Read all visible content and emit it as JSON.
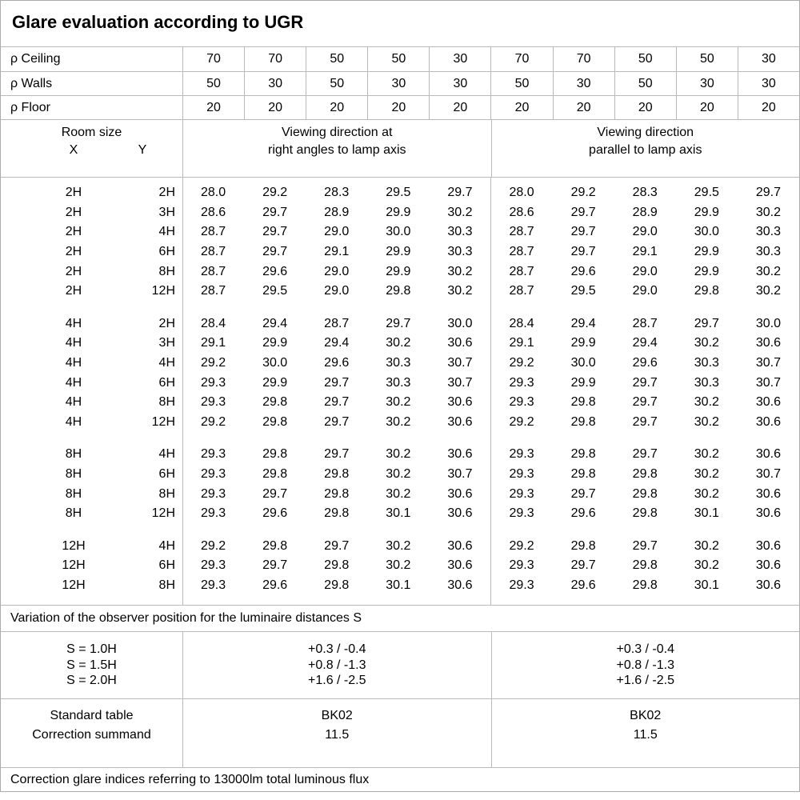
{
  "title": "Glare evaluation according to UGR",
  "reflectance_rows": [
    {
      "label": "ρ Ceiling",
      "values": [
        "70",
        "70",
        "50",
        "50",
        "30",
        "70",
        "70",
        "50",
        "50",
        "30"
      ]
    },
    {
      "label": "ρ Walls",
      "values": [
        "50",
        "30",
        "50",
        "30",
        "30",
        "50",
        "30",
        "50",
        "30",
        "30"
      ]
    },
    {
      "label": "ρ Floor",
      "values": [
        "20",
        "20",
        "20",
        "20",
        "20",
        "20",
        "20",
        "20",
        "20",
        "20"
      ]
    }
  ],
  "header": {
    "room_size_label": "Room size",
    "x_label": "X",
    "y_label": "Y",
    "viewing_right_angles_line1": "Viewing direction at",
    "viewing_right_angles_line2": "right angles to lamp axis",
    "viewing_parallel_line1": "Viewing direction",
    "viewing_parallel_line2": "parallel to lamp axis"
  },
  "ugr_table": {
    "columns_per_half": 5,
    "blocks": [
      {
        "rows": [
          {
            "x": "2H",
            "y": "2H",
            "values": [
              "28.0",
              "29.2",
              "28.3",
              "29.5",
              "29.7",
              "28.0",
              "29.2",
              "28.3",
              "29.5",
              "29.7"
            ]
          },
          {
            "x": "2H",
            "y": "3H",
            "values": [
              "28.6",
              "29.7",
              "28.9",
              "29.9",
              "30.2",
              "28.6",
              "29.7",
              "28.9",
              "29.9",
              "30.2"
            ]
          },
          {
            "x": "2H",
            "y": "4H",
            "values": [
              "28.7",
              "29.7",
              "29.0",
              "30.0",
              "30.3",
              "28.7",
              "29.7",
              "29.0",
              "30.0",
              "30.3"
            ]
          },
          {
            "x": "2H",
            "y": "6H",
            "values": [
              "28.7",
              "29.7",
              "29.1",
              "29.9",
              "30.3",
              "28.7",
              "29.7",
              "29.1",
              "29.9",
              "30.3"
            ]
          },
          {
            "x": "2H",
            "y": "8H",
            "values": [
              "28.7",
              "29.6",
              "29.0",
              "29.9",
              "30.2",
              "28.7",
              "29.6",
              "29.0",
              "29.9",
              "30.2"
            ]
          },
          {
            "x": "2H",
            "y": "12H",
            "values": [
              "28.7",
              "29.5",
              "29.0",
              "29.8",
              "30.2",
              "28.7",
              "29.5",
              "29.0",
              "29.8",
              "30.2"
            ]
          }
        ]
      },
      {
        "rows": [
          {
            "x": "4H",
            "y": "2H",
            "values": [
              "28.4",
              "29.4",
              "28.7",
              "29.7",
              "30.0",
              "28.4",
              "29.4",
              "28.7",
              "29.7",
              "30.0"
            ]
          },
          {
            "x": "4H",
            "y": "3H",
            "values": [
              "29.1",
              "29.9",
              "29.4",
              "30.2",
              "30.6",
              "29.1",
              "29.9",
              "29.4",
              "30.2",
              "30.6"
            ]
          },
          {
            "x": "4H",
            "y": "4H",
            "values": [
              "29.2",
              "30.0",
              "29.6",
              "30.3",
              "30.7",
              "29.2",
              "30.0",
              "29.6",
              "30.3",
              "30.7"
            ]
          },
          {
            "x": "4H",
            "y": "6H",
            "values": [
              "29.3",
              "29.9",
              "29.7",
              "30.3",
              "30.7",
              "29.3",
              "29.9",
              "29.7",
              "30.3",
              "30.7"
            ]
          },
          {
            "x": "4H",
            "y": "8H",
            "values": [
              "29.3",
              "29.8",
              "29.7",
              "30.2",
              "30.6",
              "29.3",
              "29.8",
              "29.7",
              "30.2",
              "30.6"
            ]
          },
          {
            "x": "4H",
            "y": "12H",
            "values": [
              "29.2",
              "29.8",
              "29.7",
              "30.2",
              "30.6",
              "29.2",
              "29.8",
              "29.7",
              "30.2",
              "30.6"
            ]
          }
        ]
      },
      {
        "rows": [
          {
            "x": "8H",
            "y": "4H",
            "values": [
              "29.3",
              "29.8",
              "29.7",
              "30.2",
              "30.6",
              "29.3",
              "29.8",
              "29.7",
              "30.2",
              "30.6"
            ]
          },
          {
            "x": "8H",
            "y": "6H",
            "values": [
              "29.3",
              "29.8",
              "29.8",
              "30.2",
              "30.7",
              "29.3",
              "29.8",
              "29.8",
              "30.2",
              "30.7"
            ]
          },
          {
            "x": "8H",
            "y": "8H",
            "values": [
              "29.3",
              "29.7",
              "29.8",
              "30.2",
              "30.6",
              "29.3",
              "29.7",
              "29.8",
              "30.2",
              "30.6"
            ]
          },
          {
            "x": "8H",
            "y": "12H",
            "values": [
              "29.3",
              "29.6",
              "29.8",
              "30.1",
              "30.6",
              "29.3",
              "29.6",
              "29.8",
              "30.1",
              "30.6"
            ]
          }
        ]
      },
      {
        "rows": [
          {
            "x": "12H",
            "y": "4H",
            "values": [
              "29.2",
              "29.8",
              "29.7",
              "30.2",
              "30.6",
              "29.2",
              "29.8",
              "29.7",
              "30.2",
              "30.6"
            ]
          },
          {
            "x": "12H",
            "y": "6H",
            "values": [
              "29.3",
              "29.7",
              "29.8",
              "30.2",
              "30.6",
              "29.3",
              "29.7",
              "29.8",
              "30.2",
              "30.6"
            ]
          },
          {
            "x": "12H",
            "y": "8H",
            "values": [
              "29.3",
              "29.6",
              "29.8",
              "30.1",
              "30.6",
              "29.3",
              "29.6",
              "29.8",
              "30.1",
              "30.6"
            ]
          }
        ]
      }
    ]
  },
  "observer_variation": {
    "note": "Variation of the observer position for the luminaire distances S",
    "rows": [
      {
        "label": "S = 1.0H",
        "right_angles": "+0.3 / -0.4",
        "parallel": "+0.3 / -0.4"
      },
      {
        "label": "S = 1.5H",
        "right_angles": "+0.8 / -1.3",
        "parallel": "+0.8 / -1.3"
      },
      {
        "label": "S = 2.0H",
        "right_angles": "+1.6 / -2.5",
        "parallel": "+1.6 / -2.5"
      }
    ]
  },
  "standard_block": {
    "row_labels": [
      "Standard table",
      "Correction summand"
    ],
    "right_angles_values": [
      "BK02",
      "11.5"
    ],
    "parallel_values": [
      "BK02",
      "11.5"
    ]
  },
  "footer_note": "Correction glare indices referring to 13000lm total luminous flux",
  "colors": {
    "background": "#ffffff",
    "text": "#000000",
    "grid_line": "#b9b9b9",
    "outer_border": "#ababab"
  }
}
